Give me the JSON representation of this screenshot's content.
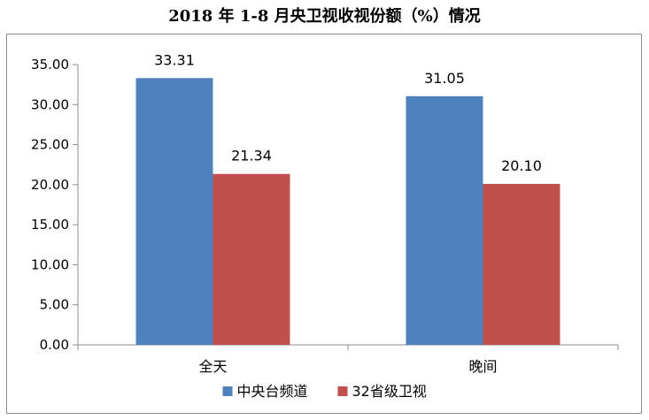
{
  "chart_data": {
    "type": "bar",
    "title": "2018 年 1-8 月央卫视收视份额（%）情况",
    "categories": [
      "全天",
      "晚间"
    ],
    "series": [
      {
        "name": "中央台频道",
        "values": [
          33.31,
          31.05
        ],
        "color": "#4f81bd"
      },
      {
        "name": "32省级卫视",
        "values": [
          21.34,
          20.1
        ],
        "color": "#c0504d"
      }
    ],
    "ylim": [
      0,
      35
    ],
    "yticks": [
      "0.00",
      "5.00",
      "10.00",
      "15.00",
      "20.00",
      "25.00",
      "30.00",
      "35.00"
    ],
    "data_labels": [
      [
        "33.31",
        "31.05"
      ],
      [
        "21.34",
        "20.10"
      ]
    ],
    "grid": false,
    "legend": "bottom"
  }
}
